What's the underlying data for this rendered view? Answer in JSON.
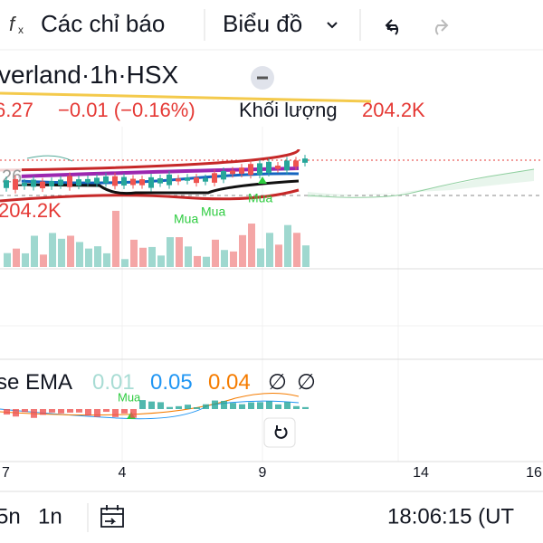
{
  "toolbar": {
    "indicators": "Các chỉ báo",
    "chart": "Biểu đồ"
  },
  "header": {
    "symbol": "verland",
    "interval": "1h",
    "exchange": "HSX",
    "separator": "·"
  },
  "quote": {
    "price": "6.27",
    "change": "−0.01 (−0.16%)",
    "volume_label": "Khối lượng",
    "volume": "204.2K"
  },
  "main_pane": {
    "price_tag": "26",
    "volume_tag": "204.2K",
    "signals": [
      "Mua",
      "Mua",
      "Mua"
    ]
  },
  "indicator": {
    "name": "se EMA",
    "values": [
      "0.01",
      "0.05",
      "0.04"
    ],
    "flags": [
      "∅",
      "∅"
    ],
    "signal": "Mua"
  },
  "x_axis": {
    "labels": [
      "7",
      "4",
      "9",
      "14",
      "16"
    ]
  },
  "bottom_bar": {
    "ranges": [
      "5n",
      "1n"
    ],
    "clock": "18:06:15 (UT"
  }
}
